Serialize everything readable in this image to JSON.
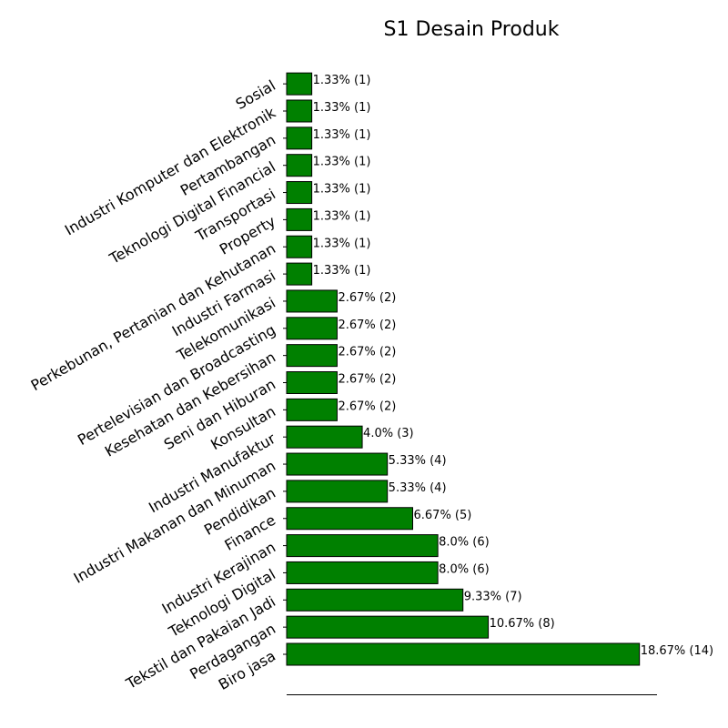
{
  "chart_data": {
    "type": "bar",
    "orientation": "horizontal",
    "title": "S1 Desain Produk",
    "xlabel": "",
    "ylabel": "",
    "bar_color": "#008000",
    "bar_edge_color": "#000000",
    "grid": false,
    "xlim": [
      0,
      19.6
    ],
    "categories": [
      "Biro jasa",
      "Perdagangan",
      "Tekstil dan Pakaian Jadi",
      "Teknologi Digital",
      "Industri Kerajinan",
      "Finance",
      "Pendidikan",
      "Industri Makanan dan Minuman",
      "Industri Manufaktur",
      "Konsultan",
      "Seni dan Hiburan",
      "Kesehatan dan Kebersihan",
      "Pertelevisian dan Broadcasting",
      "Telekomunikasi",
      "Industri Farmasi",
      "Perkebunan, Pertanian dan Kehutanan",
      "Property",
      "Transportasi",
      "Teknologi Digital Financial",
      "Pertambangan",
      "Industri Komputer dan Elektronik",
      "Sosial"
    ],
    "values": [
      18.67,
      10.67,
      9.33,
      8.0,
      8.0,
      6.67,
      5.33,
      5.33,
      4.0,
      2.67,
      2.67,
      2.67,
      2.67,
      2.67,
      1.33,
      1.33,
      1.33,
      1.33,
      1.33,
      1.33,
      1.33,
      1.33
    ],
    "data_labels": [
      "18.67% (14)",
      "10.67% (8)",
      "9.33% (7)",
      "8.0% (6)",
      "8.0% (6)",
      "6.67% (5)",
      "5.33% (4)",
      "5.33% (4)",
      "4.0% (3)",
      "2.67% (2)",
      "2.67% (2)",
      "2.67% (2)",
      "2.67% (2)",
      "2.67% (2)",
      "1.33% (1)",
      "1.33% (1)",
      "1.33% (1)",
      "1.33% (1)",
      "1.33% (1)",
      "1.33% (1)",
      "1.33% (1)",
      "1.33% (1)"
    ]
  }
}
